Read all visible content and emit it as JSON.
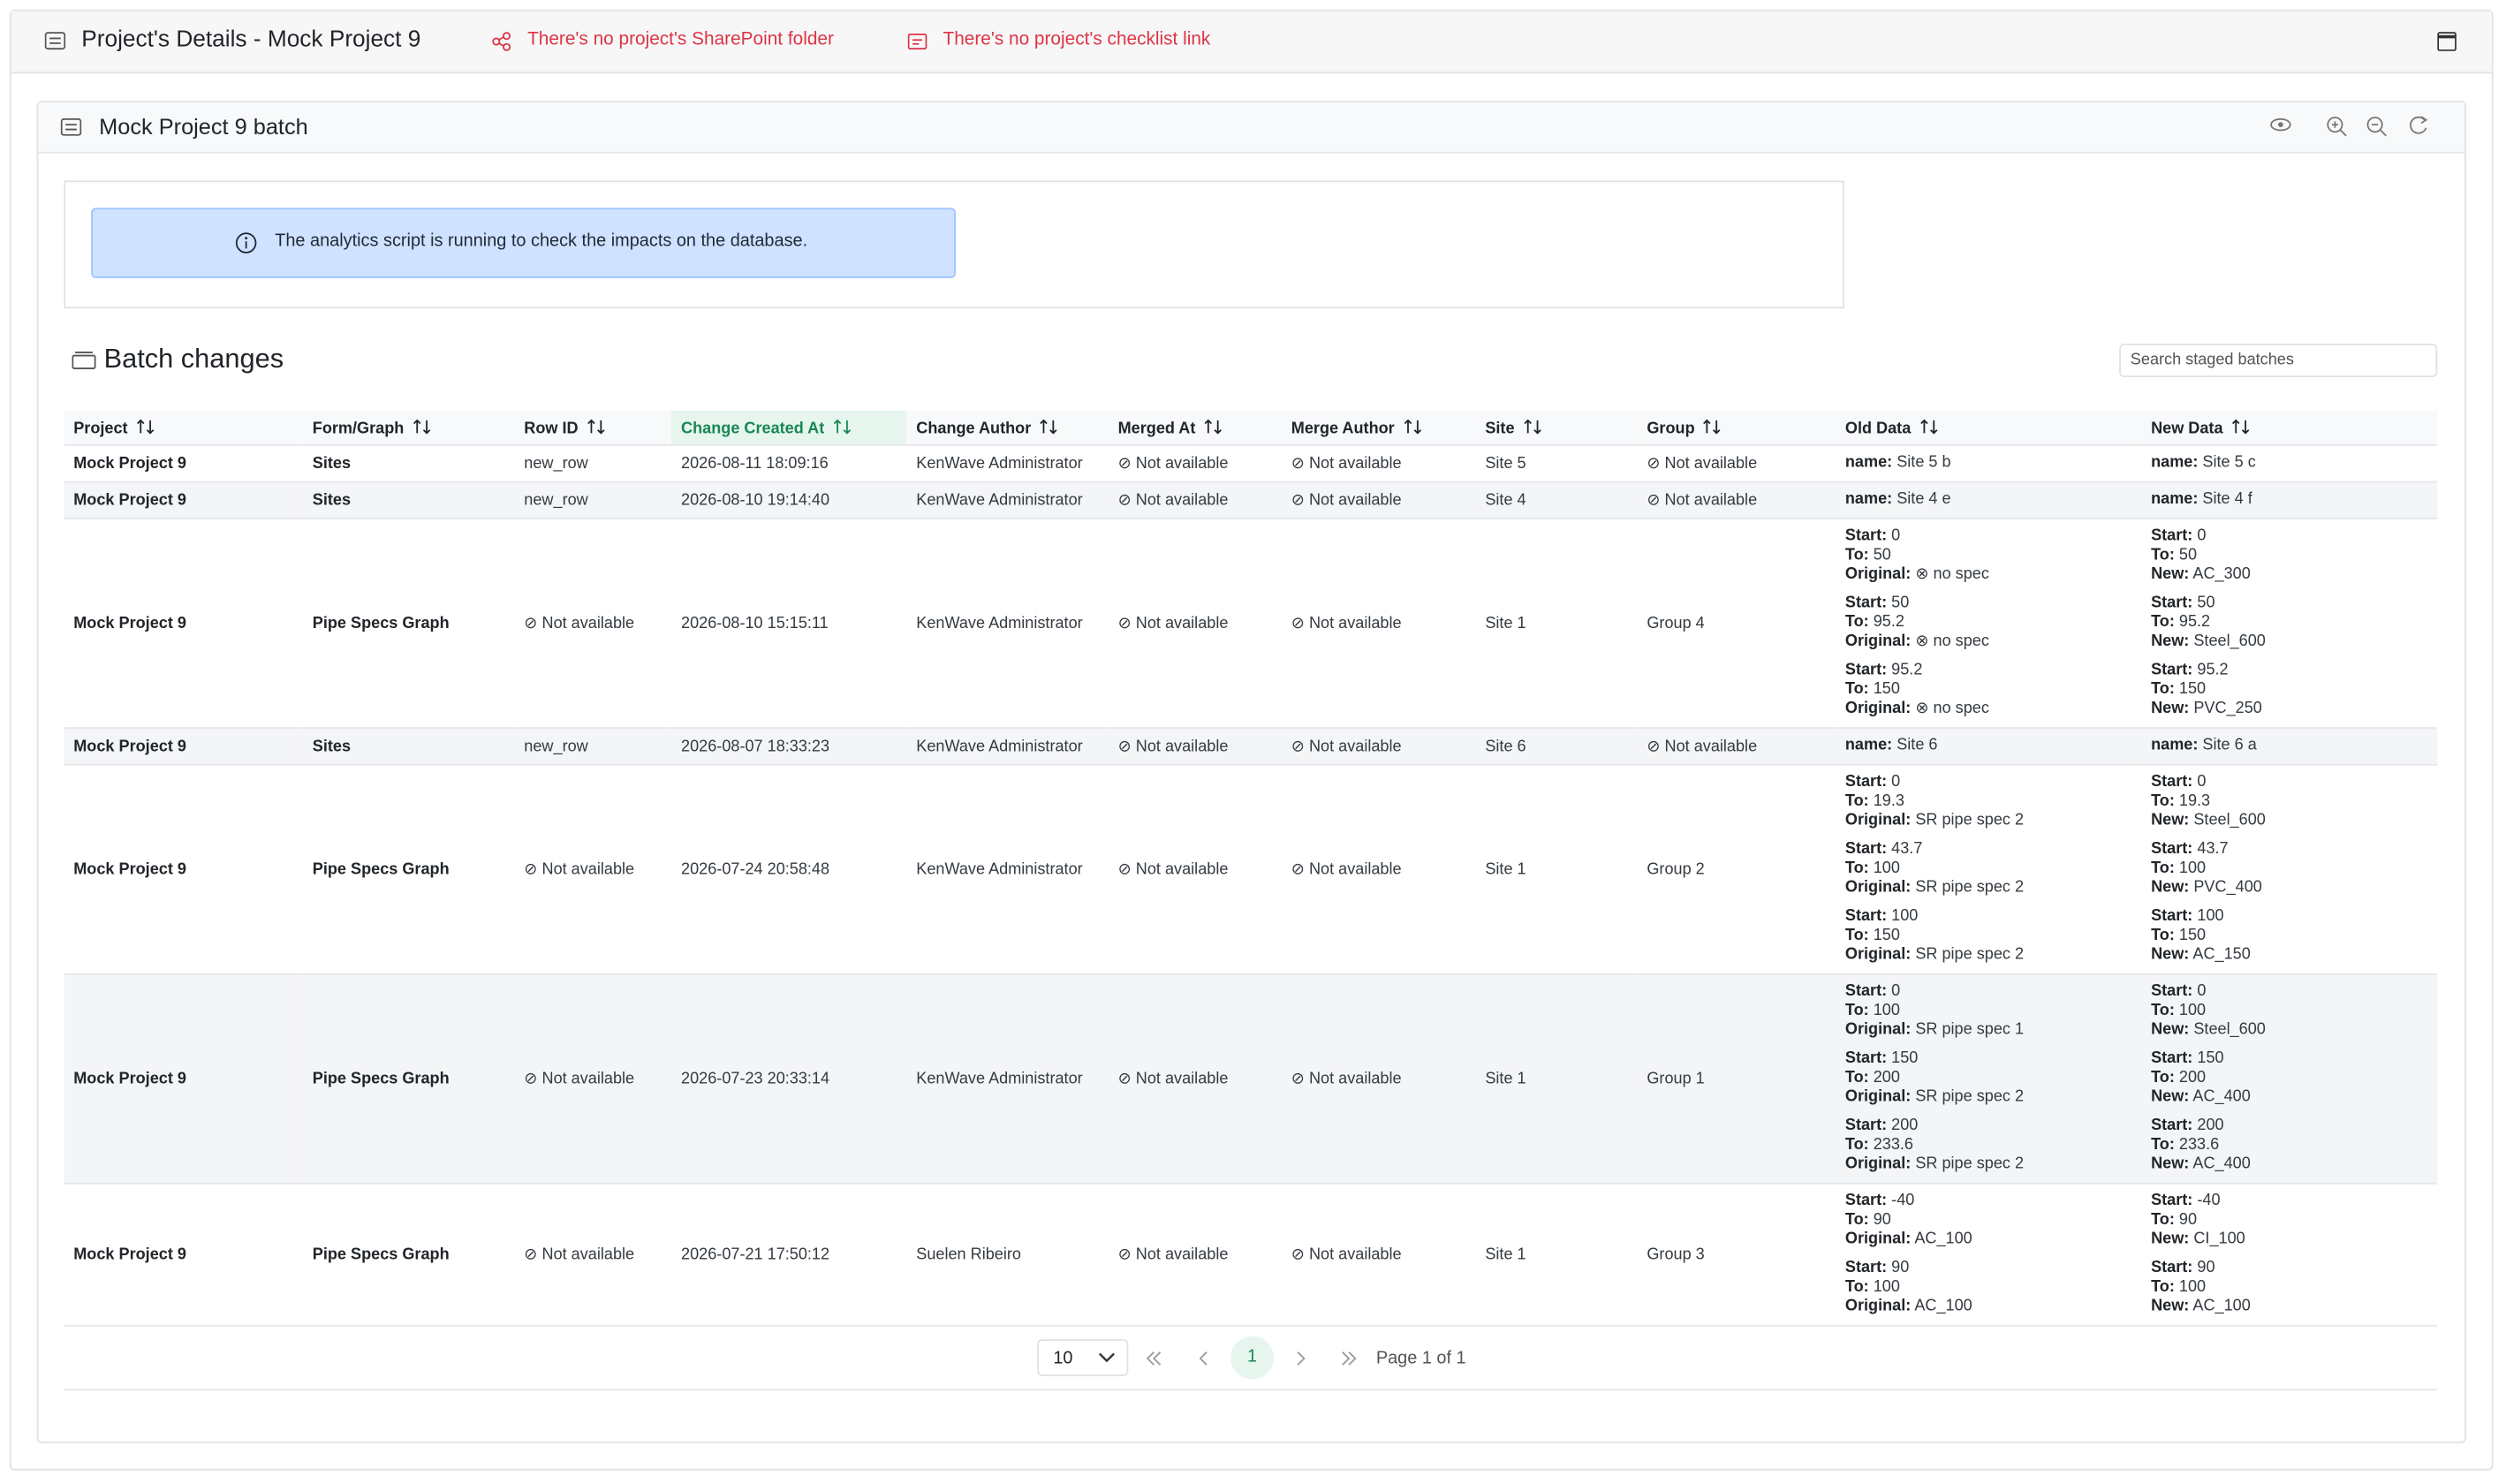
{
  "header": {
    "title": "Project's Details - Mock Project 9",
    "sharepoint_warning": "There's no project's SharePoint folder",
    "checklist_warning": "There's no project's checklist link"
  },
  "panel": {
    "title": "Mock Project 9 batch"
  },
  "alert": {
    "message": "The analytics script is running to check the impacts on the database."
  },
  "batch_changes": {
    "title": "Batch changes",
    "search_placeholder": "Search staged batches"
  },
  "table": {
    "columns": [
      "Project",
      "Form/Graph",
      "Row ID",
      "Change Created At",
      "Change Author",
      "Merged At",
      "Merge Author",
      "Site",
      "Group",
      "Old Data",
      "New Data"
    ],
    "rows": [
      {
        "cells": [
          "Mock Project 9",
          "Sites",
          "new_row",
          "2026-08-11 18:09:16",
          "KenWave Administrator",
          "⊘ Not available",
          "⊘ Not available",
          "Site 5",
          "⊘ Not available"
        ],
        "old_data": [
          [
            {
              "label": "name:",
              "value": "Site 5 b"
            }
          ]
        ],
        "new_data": [
          [
            {
              "label": "name:",
              "value": "Site 5 c"
            }
          ]
        ]
      },
      {
        "cells": [
          "Mock Project 9",
          "Sites",
          "new_row",
          "2026-08-10 19:14:40",
          "KenWave Administrator",
          "⊘ Not available",
          "⊘ Not available",
          "Site 4",
          "⊘ Not available"
        ],
        "old_data": [
          [
            {
              "label": "name:",
              "value": "Site 4 e"
            }
          ]
        ],
        "new_data": [
          [
            {
              "label": "name:",
              "value": "Site 4 f"
            }
          ]
        ]
      },
      {
        "cells": [
          "Mock Project 9",
          "Pipe Specs Graph",
          "⊘ Not available",
          "2026-08-10 15:15:11",
          "KenWave Administrator",
          "⊘ Not available",
          "⊘ Not available",
          "Site 1",
          "Group 4"
        ],
        "old_data": [
          [
            {
              "label": "Start:",
              "value": "0"
            },
            {
              "label": "To:",
              "value": "50"
            },
            {
              "label": "Original:",
              "value": "⊗ no spec"
            }
          ],
          [
            {
              "label": "Start:",
              "value": "50"
            },
            {
              "label": "To:",
              "value": "95.2"
            },
            {
              "label": "Original:",
              "value": "⊗ no spec"
            }
          ],
          [
            {
              "label": "Start:",
              "value": "95.2"
            },
            {
              "label": "To:",
              "value": "150"
            },
            {
              "label": "Original:",
              "value": "⊗ no spec"
            }
          ]
        ],
        "new_data": [
          [
            {
              "label": "Start:",
              "value": "0"
            },
            {
              "label": "To:",
              "value": "50"
            },
            {
              "label": "New:",
              "value": "AC_300"
            }
          ],
          [
            {
              "label": "Start:",
              "value": "50"
            },
            {
              "label": "To:",
              "value": "95.2"
            },
            {
              "label": "New:",
              "value": "Steel_600"
            }
          ],
          [
            {
              "label": "Start:",
              "value": "95.2"
            },
            {
              "label": "To:",
              "value": "150"
            },
            {
              "label": "New:",
              "value": "PVC_250"
            }
          ]
        ]
      },
      {
        "cells": [
          "Mock Project 9",
          "Sites",
          "new_row",
          "2026-08-07 18:33:23",
          "KenWave Administrator",
          "⊘ Not available",
          "⊘ Not available",
          "Site 6",
          "⊘ Not available"
        ],
        "old_data": [
          [
            {
              "label": "name:",
              "value": "Site 6"
            }
          ]
        ],
        "new_data": [
          [
            {
              "label": "name:",
              "value": "Site 6 a"
            }
          ]
        ]
      },
      {
        "cells": [
          "Mock Project 9",
          "Pipe Specs Graph",
          "⊘ Not available",
          "2026-07-24 20:58:48",
          "KenWave Administrator",
          "⊘ Not available",
          "⊘ Not available",
          "Site 1",
          "Group 2"
        ],
        "old_data": [
          [
            {
              "label": "Start:",
              "value": "0"
            },
            {
              "label": "To:",
              "value": "19.3"
            },
            {
              "label": "Original:",
              "value": "SR pipe spec 2"
            }
          ],
          [
            {
              "label": "Start:",
              "value": "43.7"
            },
            {
              "label": "To:",
              "value": "100"
            },
            {
              "label": "Original:",
              "value": "SR pipe spec 2"
            }
          ],
          [
            {
              "label": "Start:",
              "value": "100"
            },
            {
              "label": "To:",
              "value": "150"
            },
            {
              "label": "Original:",
              "value": "SR pipe spec 2"
            }
          ]
        ],
        "new_data": [
          [
            {
              "label": "Start:",
              "value": "0"
            },
            {
              "label": "To:",
              "value": "19.3"
            },
            {
              "label": "New:",
              "value": "Steel_600"
            }
          ],
          [
            {
              "label": "Start:",
              "value": "43.7"
            },
            {
              "label": "To:",
              "value": "100"
            },
            {
              "label": "New:",
              "value": "PVC_400"
            }
          ],
          [
            {
              "label": "Start:",
              "value": "100"
            },
            {
              "label": "To:",
              "value": "150"
            },
            {
              "label": "New:",
              "value": "AC_150"
            }
          ]
        ]
      },
      {
        "cells": [
          "Mock Project 9",
          "Pipe Specs Graph",
          "⊘ Not available",
          "2026-07-23 20:33:14",
          "KenWave Administrator",
          "⊘ Not available",
          "⊘ Not available",
          "Site 1",
          "Group 1"
        ],
        "old_data": [
          [
            {
              "label": "Start:",
              "value": "0"
            },
            {
              "label": "To:",
              "value": "100"
            },
            {
              "label": "Original:",
              "value": "SR pipe spec 1"
            }
          ],
          [
            {
              "label": "Start:",
              "value": "150"
            },
            {
              "label": "To:",
              "value": "200"
            },
            {
              "label": "Original:",
              "value": "SR pipe spec 2"
            }
          ],
          [
            {
              "label": "Start:",
              "value": "200"
            },
            {
              "label": "To:",
              "value": "233.6"
            },
            {
              "label": "Original:",
              "value": "SR pipe spec 2"
            }
          ]
        ],
        "new_data": [
          [
            {
              "label": "Start:",
              "value": "0"
            },
            {
              "label": "To:",
              "value": "100"
            },
            {
              "label": "New:",
              "value": "Steel_600"
            }
          ],
          [
            {
              "label": "Start:",
              "value": "150"
            },
            {
              "label": "To:",
              "value": "200"
            },
            {
              "label": "New:",
              "value": "AC_400"
            }
          ],
          [
            {
              "label": "Start:",
              "value": "200"
            },
            {
              "label": "To:",
              "value": "233.6"
            },
            {
              "label": "New:",
              "value": "AC_400"
            }
          ]
        ]
      },
      {
        "cells": [
          "Mock Project 9",
          "Pipe Specs Graph",
          "⊘ Not available",
          "2026-07-21 17:50:12",
          "Suelen Ribeiro",
          "⊘ Not available",
          "⊘ Not available",
          "Site 1",
          "Group 3"
        ],
        "old_data": [
          [
            {
              "label": "Start:",
              "value": "-40"
            },
            {
              "label": "To:",
              "value": "90"
            },
            {
              "label": "Original:",
              "value": "AC_100"
            }
          ],
          [
            {
              "label": "Start:",
              "value": "90"
            },
            {
              "label": "To:",
              "value": "100"
            },
            {
              "label": "Original:",
              "value": "AC_100"
            }
          ]
        ],
        "new_data": [
          [
            {
              "label": "Start:",
              "value": "-40"
            },
            {
              "label": "To:",
              "value": "90"
            },
            {
              "label": "New:",
              "value": "CI_100"
            }
          ],
          [
            {
              "label": "Start:",
              "value": "90"
            },
            {
              "label": "To:",
              "value": "100"
            },
            {
              "label": "New:",
              "value": "AC_100"
            }
          ]
        ]
      }
    ]
  },
  "pagination": {
    "page_size": 10,
    "current_page": 1,
    "page_info": "Page 1 of 1"
  }
}
